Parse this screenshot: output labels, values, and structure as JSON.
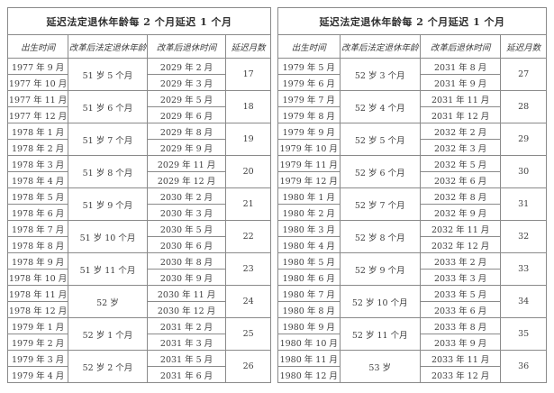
{
  "page": {
    "background": "#ffffff",
    "border_color": "#8a8a8a",
    "text_color": "#3c3c3c"
  },
  "tables": [
    {
      "title": "延迟法定退休年龄每 2 个月延迟 1 个月",
      "headers": [
        "出生时间",
        "改革后法定退休年龄",
        "改革后退休时间",
        "延迟月数"
      ],
      "groups": [
        {
          "births": [
            "1977 年 9 月",
            "1977 年 10 月"
          ],
          "age": "51 岁 5 个月",
          "retirements": [
            "2029 年 2 月",
            "2029 年 3 月"
          ],
          "delay": "17"
        },
        {
          "births": [
            "1977 年 11 月",
            "1977 年 12 月"
          ],
          "age": "51 岁 6 个月",
          "retirements": [
            "2029 年 5 月",
            "2029 年 6 月"
          ],
          "delay": "18"
        },
        {
          "births": [
            "1978 年 1 月",
            "1978 年 2 月"
          ],
          "age": "51 岁 7 个月",
          "retirements": [
            "2029 年 8 月",
            "2029 年 9 月"
          ],
          "delay": "19"
        },
        {
          "births": [
            "1978 年 3 月",
            "1978 年 4 月"
          ],
          "age": "51 岁 8 个月",
          "retirements": [
            "2029 年 11 月",
            "2029 年 12 月"
          ],
          "delay": "20"
        },
        {
          "births": [
            "1978 年 5 月",
            "1978 年 6 月"
          ],
          "age": "51 岁 9 个月",
          "retirements": [
            "2030 年 2 月",
            "2030 年 3 月"
          ],
          "delay": "21"
        },
        {
          "births": [
            "1978 年 7 月",
            "1978 年 8 月"
          ],
          "age": "51 岁 10 个月",
          "retirements": [
            "2030 年 5 月",
            "2030 年 6 月"
          ],
          "delay": "22"
        },
        {
          "births": [
            "1978 年 9 月",
            "1978 年 10 月"
          ],
          "age": "51 岁 11 个月",
          "retirements": [
            "2030 年 8 月",
            "2030 年 9 月"
          ],
          "delay": "23"
        },
        {
          "births": [
            "1978 年 11 月",
            "1978 年 12 月"
          ],
          "age": "52 岁",
          "retirements": [
            "2030 年 11 月",
            "2030 年 12 月"
          ],
          "delay": "24"
        },
        {
          "births": [
            "1979 年 1 月",
            "1979 年 2 月"
          ],
          "age": "52 岁 1 个月",
          "retirements": [
            "2031 年 2 月",
            "2031 年 3 月"
          ],
          "delay": "25"
        },
        {
          "births": [
            "1979 年 3 月",
            "1979 年 4 月"
          ],
          "age": "52 岁 2 个月",
          "retirements": [
            "2031 年 5 月",
            "2031 年 6 月"
          ],
          "delay": "26"
        }
      ]
    },
    {
      "title": "延迟法定退休年龄每 2 个月延迟 1 个月",
      "headers": [
        "出生时间",
        "改革后法定退休年龄",
        "改革后退休时间",
        "延迟月数"
      ],
      "groups": [
        {
          "births": [
            "1979 年 5 月",
            "1979 年 6 月"
          ],
          "age": "52 岁 3 个月",
          "retirements": [
            "2031 年 8 月",
            "2031 年 9 月"
          ],
          "delay": "27"
        },
        {
          "births": [
            "1979 年 7 月",
            "1979 年 8 月"
          ],
          "age": "52 岁 4 个月",
          "retirements": [
            "2031 年 11 月",
            "2031 年 12 月"
          ],
          "delay": "28"
        },
        {
          "births": [
            "1979 年 9 月",
            "1979 年 10 月"
          ],
          "age": "52 岁 5 个月",
          "retirements": [
            "2032 年 2 月",
            "2032 年 3 月"
          ],
          "delay": "29"
        },
        {
          "births": [
            "1979 年 11 月",
            "1979 年 12 月"
          ],
          "age": "52 岁 6 个月",
          "retirements": [
            "2032 年 5 月",
            "2032 年 6 月"
          ],
          "delay": "30"
        },
        {
          "births": [
            "1980 年 1 月",
            "1980 年 2 月"
          ],
          "age": "52 岁 7 个月",
          "retirements": [
            "2032 年 8 月",
            "2032 年 9 月"
          ],
          "delay": "31"
        },
        {
          "births": [
            "1980 年 3 月",
            "1980 年 4 月"
          ],
          "age": "52 岁 8 个月",
          "retirements": [
            "2032 年 11 月",
            "2032 年 12 月"
          ],
          "delay": "32"
        },
        {
          "births": [
            "1980 年 5 月",
            "1980 年 6 月"
          ],
          "age": "52 岁 9 个月",
          "retirements": [
            "2033 年 2 月",
            "2033 年 3 月"
          ],
          "delay": "33"
        },
        {
          "births": [
            "1980 年 7 月",
            "1980 年 8 月"
          ],
          "age": "52 岁 10 个月",
          "retirements": [
            "2033 年 5 月",
            "2033 年 6 月"
          ],
          "delay": "34"
        },
        {
          "births": [
            "1980 年 9 月",
            "1980 年 10 月"
          ],
          "age": "52 岁 11 个月",
          "retirements": [
            "2033 年 8 月",
            "2033 年 9 月"
          ],
          "delay": "35"
        },
        {
          "births": [
            "1980 年 11 月",
            "1980 年 12 月"
          ],
          "age": "53 岁",
          "retirements": [
            "2033 年 11 月",
            "2033 年 12 月"
          ],
          "delay": "36"
        }
      ]
    }
  ]
}
